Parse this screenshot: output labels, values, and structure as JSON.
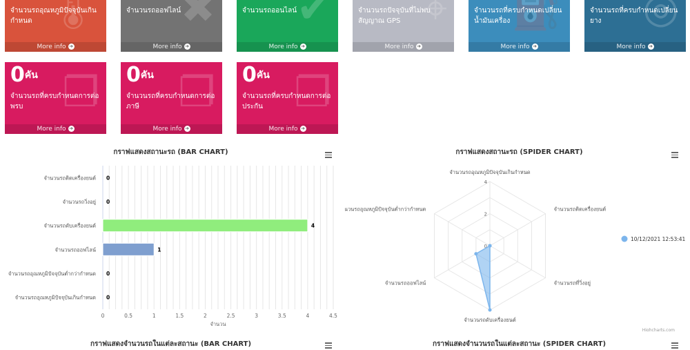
{
  "boxes_row1": [
    {
      "desc": "จำนวนรถอุณหภูมิปัจจุบันเกินกำหนด",
      "footer": "More info",
      "color": "#d9533c",
      "icon": "thermometer-icon"
    },
    {
      "desc": "จำนวนรถออฟไลน์",
      "footer": "More info",
      "color": "#737373",
      "icon": "times-icon"
    },
    {
      "desc": "จำนวนรถออนไลน์",
      "footer": "More info",
      "color": "#1aa75a",
      "icon": "check-icon"
    },
    {
      "desc": "จำนวนรถปัจจุบันที่ไม่พบสัญญาณ GPS",
      "footer": "More info",
      "color": "#b8bac4",
      "icon": "map-marker-icon"
    },
    {
      "desc": "จำนวนรถที่ครบกำหนดเปลี่ยนน้ำมันเครื่อง",
      "footer": "More info",
      "color": "#3c8dbc",
      "icon": "oil-icon"
    },
    {
      "desc": "จำนวนรถที่ครบกำหนดเปลี่ยนยาง",
      "footer": "More info",
      "color": "#2d6f94",
      "icon": "tire-icon"
    }
  ],
  "boxes_row2": [
    {
      "value": "0",
      "unit": "คัน",
      "desc": "จำนวนรถที่ครบกำหนดการต่อพรบ",
      "footer": "More info",
      "color": "#d81b60",
      "icon": "book-icon"
    },
    {
      "value": "0",
      "unit": "คัน",
      "desc": "จำนวนรถที่ครบกำหนดการต่อภาษี",
      "footer": "More info",
      "color": "#d81b60",
      "icon": "book-icon"
    },
    {
      "value": "0",
      "unit": "คัน",
      "desc": "จำนวนรถที่ครบกำหนดการต่อประกัน",
      "footer": "More info",
      "color": "#d81b60",
      "icon": "book-icon"
    }
  ],
  "bar_chart": {
    "title": "กราฟแสดงสถานะรถ (BAR CHART)",
    "xlabel": "จำนวน"
  },
  "spider_chart": {
    "title": "กราฟแสดงสถานะรถ (SPIDER CHART)",
    "credits": "Highcharts.com"
  },
  "bottom_titles": {
    "left": "กราฟแสดงจำนวนรถในแต่ละสถานะ (BAR CHART)",
    "right": "กราฟแสดงจำนวนรถในแต่ละสถานะ (SPIDER CHART)"
  },
  "chart_data": [
    {
      "type": "bar",
      "title": "กราฟแสดงสถานะรถ (BAR CHART)",
      "xlabel": "จำนวน",
      "categories": [
        "จำนวนรถติดเครื่องยนต์",
        "จำนวนรถวิ่งอยู่",
        "จำนวนรถดับเครื่องยนต์",
        "จำนวนรถออฟไลน์",
        "จำนวนรถอุณหภูมิปัจจุบันต่ำกว่ากำหนด",
        "จำนวนรถอุณหภูมิปัจจุบันเกินกำหนด"
      ],
      "values": [
        0,
        0,
        4,
        1,
        0,
        0
      ],
      "bar_colors": [
        "#90ed7d",
        "#90ed7d",
        "#90ed7d",
        "#7f9fcf",
        "#90ed7d",
        "#90ed7d"
      ],
      "xlim": [
        0,
        4.5
      ],
      "xticks": [
        "0",
        "0.5",
        "1",
        "1.5",
        "2",
        "2.5",
        "3",
        "3.5",
        "4",
        "4.5"
      ],
      "grid": true
    },
    {
      "type": "radar",
      "title": "กราฟแสดงสถานะรถ (SPIDER CHART)",
      "categories": [
        "จำนวนรถอุณหภูมิปัจจุบันเกินกำหนด",
        "จำนวนรถติดเครื่องยนต์",
        "จำนวนรถที่วิ่งอยู่",
        "จำนวนรถดับเครื่องยนต์",
        "จำนวนรถออฟไลน์",
        "จำนวนรถอุณหภูมิปัจจุบันต่ำกว่ากำหนด"
      ],
      "series": [
        {
          "name": "10/12/2021 12:53:41",
          "values": [
            0,
            0,
            0,
            4,
            1,
            0
          ],
          "color": "#7cb5ec"
        }
      ],
      "rlim": [
        0,
        4
      ],
      "rticks": [
        "0",
        "2",
        "4"
      ],
      "legend": "right"
    }
  ]
}
